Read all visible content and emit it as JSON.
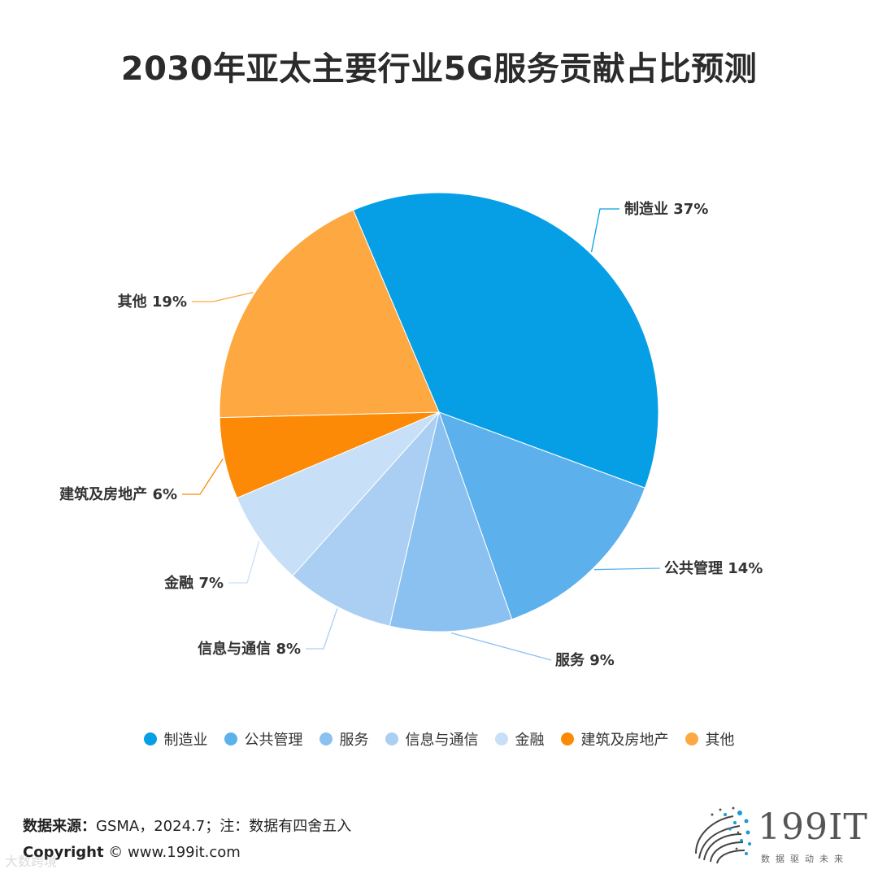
{
  "title": "2030年亚太主要行业5G服务贡献占比预测",
  "chart_data": {
    "type": "pie",
    "title": "2030年亚太主要行业5G服务贡献占比预测",
    "slices": [
      {
        "label": "制造业",
        "value": 37,
        "display": "制造业 37%",
        "color": "#069fe6"
      },
      {
        "label": "公共管理",
        "value": 14,
        "display": "公共管理 14%",
        "color": "#5cb0ec"
      },
      {
        "label": "服务",
        "value": 9,
        "display": "服务 9%",
        "color": "#8ac1f0"
      },
      {
        "label": "信息与通信",
        "value": 8,
        "display": "信息与通信 8%",
        "color": "#aacff3"
      },
      {
        "label": "金融",
        "value": 7,
        "display": "金融 7%",
        "color": "#c7e0f7"
      },
      {
        "label": "建筑及房地产",
        "value": 6,
        "display": "建筑及房地产 6%",
        "color": "#fc8a06"
      },
      {
        "label": "其他",
        "value": 19,
        "display": "其他 19%",
        "color": "#fda841"
      }
    ],
    "legend_position": "bottom"
  },
  "legend": [
    "制造业",
    "公共管理",
    "服务",
    "信息与通信",
    "金融",
    "建筑及房地产",
    "其他"
  ],
  "footer": {
    "source_label": "数据来源：",
    "source_text": "GSMA，2024.7；注：数据有四舍五入",
    "copyright_label": "Copyright",
    "copyright_text": "© www.199it.com"
  },
  "logo": {
    "name": "199IT",
    "tagline": "数据驱动未来"
  },
  "watermark": "大数跨境"
}
